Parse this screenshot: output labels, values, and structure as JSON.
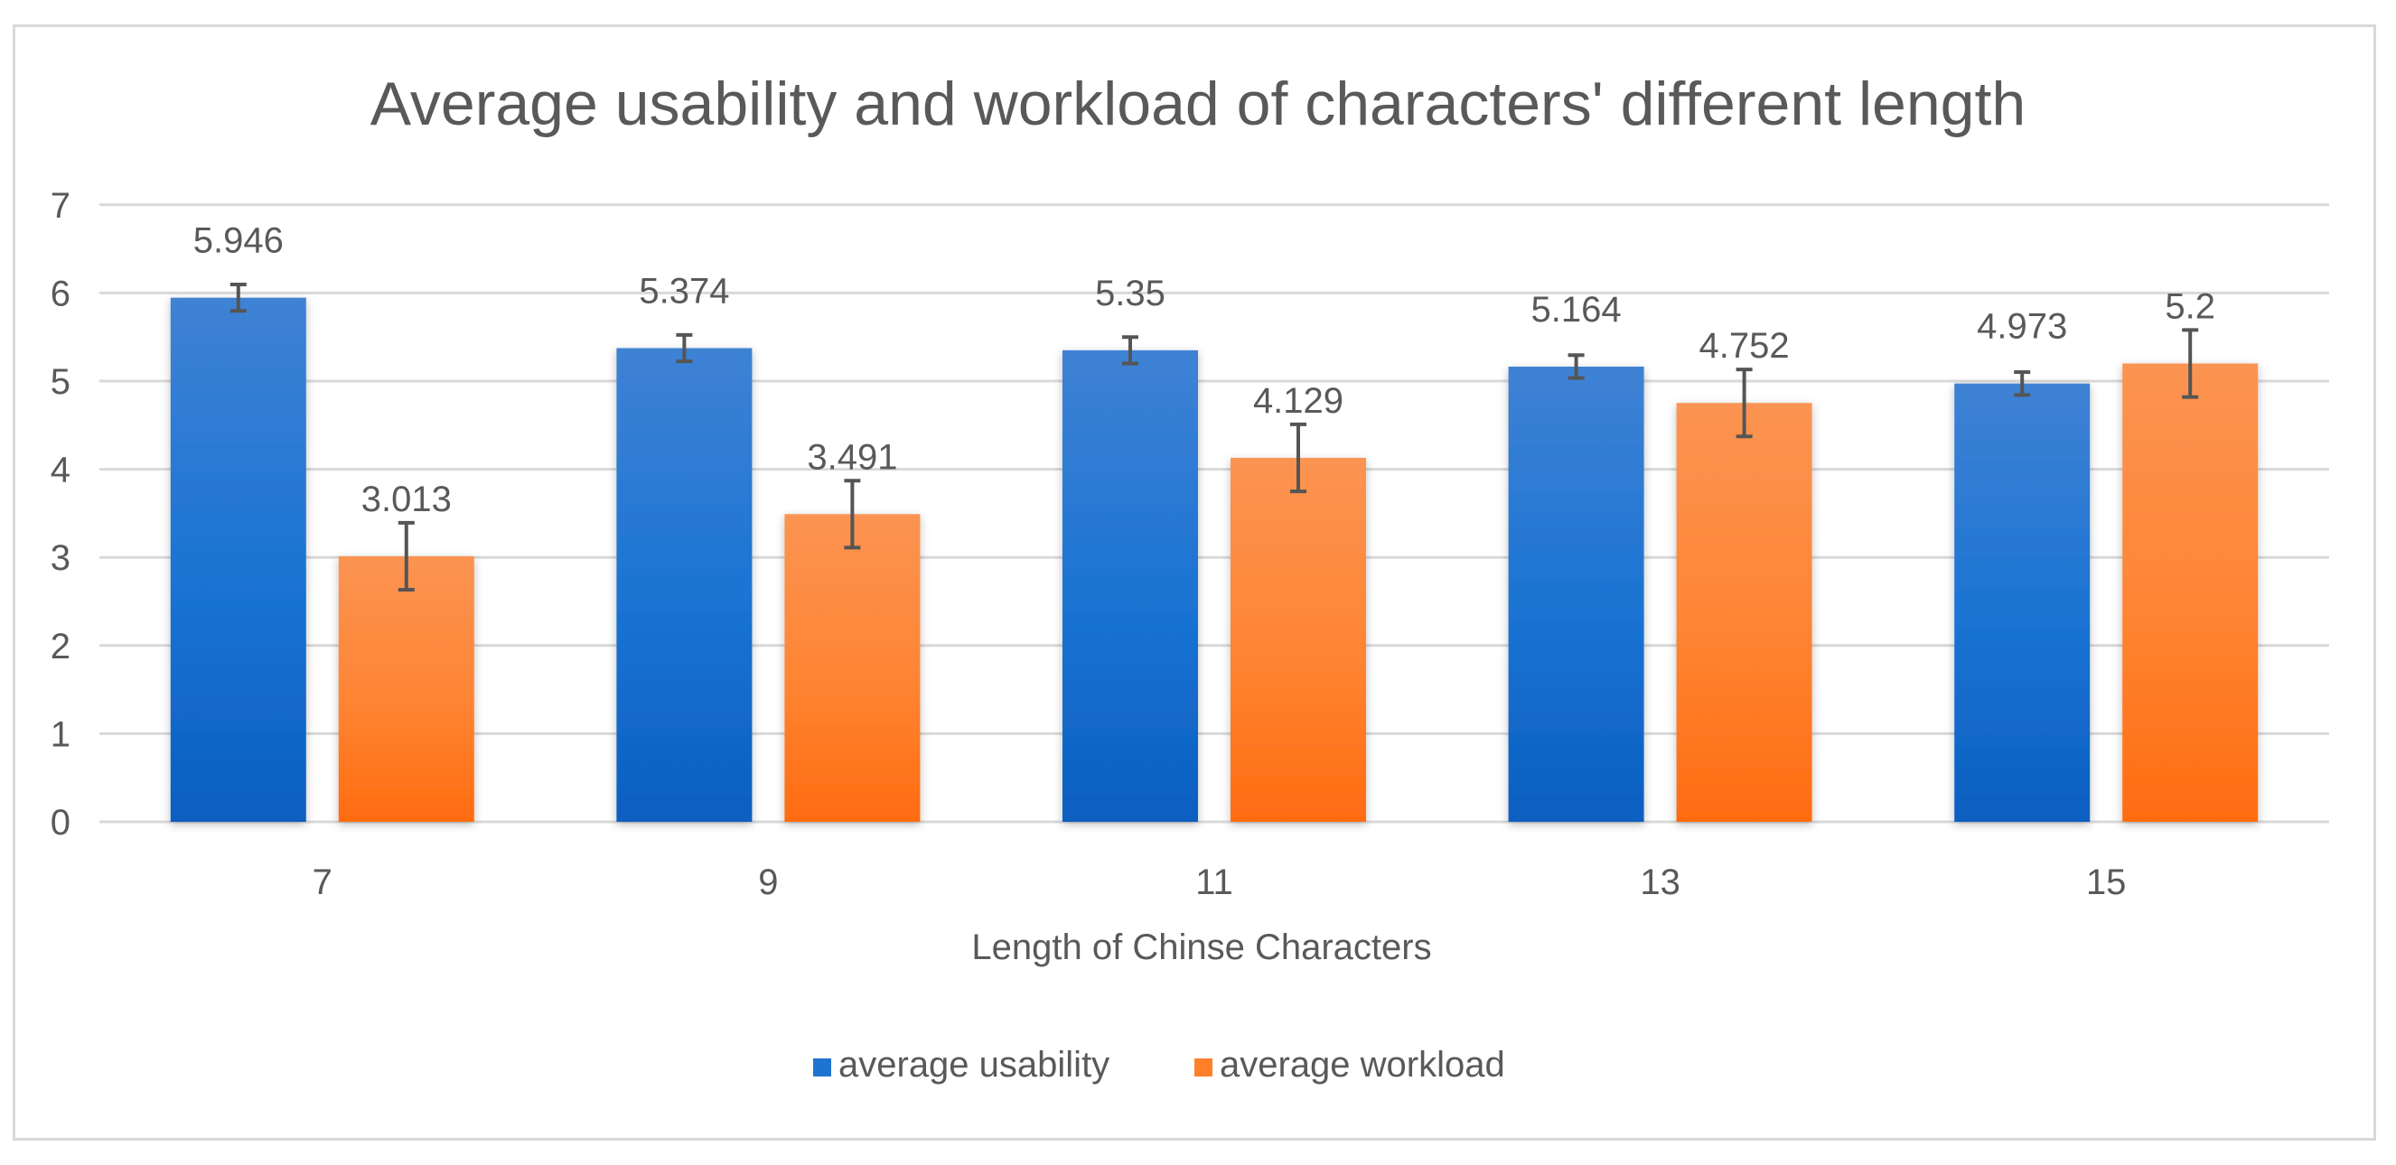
{
  "chart_data": {
    "type": "bar",
    "title": "Average usability and workload of characters' different length",
    "xlabel": "Length of Chinse Characters",
    "ylabel": "",
    "categories": [
      "7",
      "9",
      "11",
      "13",
      "15"
    ],
    "ylim": [
      0,
      7
    ],
    "yticks": [
      "0",
      "1",
      "2",
      "3",
      "4",
      "5",
      "6",
      "7"
    ],
    "grid": true,
    "legend_position": "bottom",
    "series": [
      {
        "name": "average usability",
        "color": "#1f74d1",
        "values": [
          5.946,
          5.374,
          5.35,
          5.164,
          4.973
        ],
        "labels": [
          "5.946",
          "5.374",
          "5.35",
          "5.164",
          "4.973"
        ],
        "error": [
          0.15,
          0.15,
          0.15,
          0.13,
          0.13
        ]
      },
      {
        "name": "average workload",
        "color": "#ff7f2a",
        "values": [
          3.013,
          3.491,
          4.129,
          4.752,
          5.2
        ],
        "labels": [
          "3.013",
          "3.491",
          "4.129",
          "4.752",
          "5.2"
        ],
        "error": [
          0.38,
          0.38,
          0.38,
          0.38,
          0.38
        ]
      }
    ]
  }
}
